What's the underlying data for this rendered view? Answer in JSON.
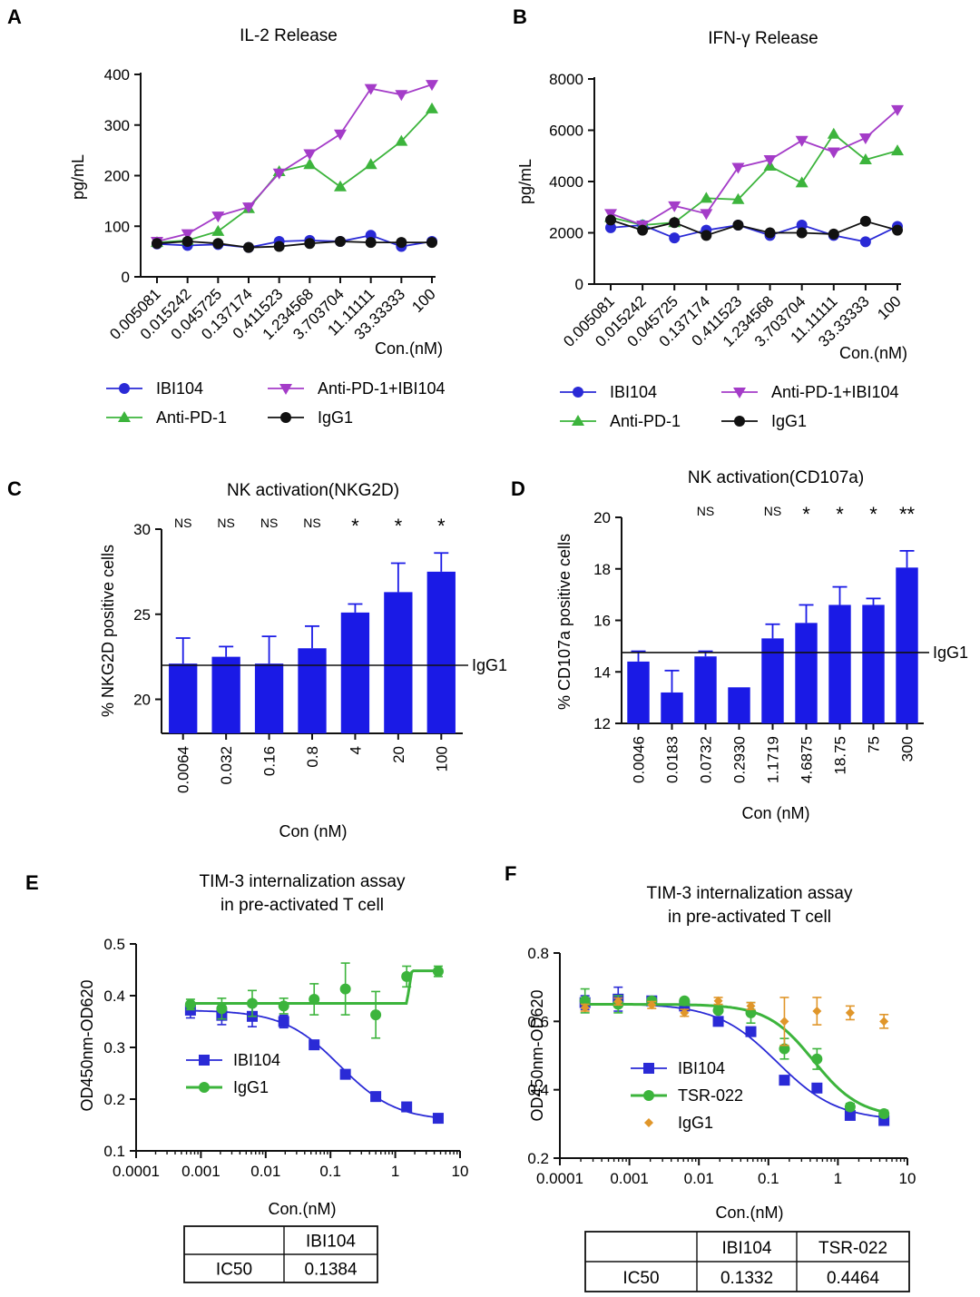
{
  "panels": [
    {
      "letter": "A",
      "title": [
        "IL-2 Release"
      ],
      "type": "line",
      "xlabel": "Con.(nM)",
      "ylabel": "pg/mL",
      "categories": [
        "0.005081",
        "0.015242",
        "0.045725",
        "0.137174",
        "0.411523",
        "1.234568",
        "3.703704",
        "11.11111",
        "33.33333",
        "100"
      ],
      "yticks": [
        0,
        100,
        200,
        300,
        400
      ],
      "ylim": [
        0,
        400
      ],
      "series": [
        {
          "name": "IBI104",
          "color": "#2a2ad6",
          "marker": "circle",
          "values": [
            65,
            62,
            64,
            58,
            70,
            72,
            70,
            82,
            60,
            70
          ]
        },
        {
          "name": "Anti-PD-1",
          "color": "#3cb43c",
          "marker": "triangle-up",
          "values": [
            68,
            72,
            90,
            135,
            208,
            222,
            178,
            222,
            268,
            332
          ]
        },
        {
          "name": "Anti-PD-1+IBI104",
          "color": "#a43cc8",
          "marker": "triangle-down",
          "values": [
            70,
            85,
            120,
            138,
            205,
            243,
            282,
            372,
            360,
            380
          ]
        },
        {
          "name": "IgG1",
          "color": "#111111",
          "marker": "circle",
          "values": [
            66,
            70,
            66,
            58,
            60,
            66,
            70,
            68,
            68,
            68
          ]
        }
      ]
    },
    {
      "letter": "B",
      "title": [
        "IFN-γ Release"
      ],
      "type": "line",
      "xlabel": "Con.(nM)",
      "ylabel": "pg/mL",
      "categories": [
        "0.005081",
        "0.015242",
        "0.045725",
        "0.137174",
        "0.411523",
        "1.234568",
        "3.703704",
        "11.11111",
        "33.33333",
        "100"
      ],
      "yticks": [
        0,
        2000,
        4000,
        6000,
        8000
      ],
      "ylim": [
        0,
        8000
      ],
      "series": [
        {
          "name": "IBI104",
          "color": "#2a2ad6",
          "marker": "circle",
          "values": [
            2200,
            2300,
            1800,
            2100,
            2300,
            1900,
            2300,
            1900,
            1650,
            2250
          ]
        },
        {
          "name": "Anti-PD-1",
          "color": "#3cb43c",
          "marker": "triangle-up",
          "values": [
            2600,
            2300,
            2400,
            3350,
            3300,
            4600,
            3950,
            5850,
            4850,
            5200
          ]
        },
        {
          "name": "Anti-PD-1+IBI104",
          "color": "#a43cc8",
          "marker": "triangle-down",
          "values": [
            2750,
            2300,
            3050,
            2750,
            4550,
            4850,
            5600,
            5150,
            5700,
            6800
          ]
        },
        {
          "name": "IgG1",
          "color": "#111111",
          "marker": "circle",
          "values": [
            2500,
            2100,
            2400,
            1900,
            2300,
            2000,
            2000,
            1950,
            2450,
            2100
          ]
        }
      ]
    },
    {
      "letter": "C",
      "title": [
        "NK activation(NKG2D)"
      ],
      "type": "bar",
      "xlabel": "Con (nM)",
      "ylabel": "% NKG2D positive cells",
      "categories": [
        "0.0064",
        "0.032",
        "0.16",
        "0.8",
        "4",
        "20",
        "100"
      ],
      "values": [
        22.1,
        22.5,
        22.1,
        23.0,
        25.1,
        26.3,
        27.5
      ],
      "errors": [
        1.5,
        0.6,
        1.6,
        1.3,
        0.5,
        1.7,
        1.1
      ],
      "significance": [
        "NS",
        "NS",
        "NS",
        "NS",
        "*",
        "*",
        "*"
      ],
      "yticks": [
        20,
        25,
        30
      ],
      "ylim": [
        18,
        30
      ],
      "reference": {
        "label": "IgG1",
        "value": 22.0
      },
      "color": "#1a1ae6"
    },
    {
      "letter": "D",
      "title": [
        "NK activation(CD107a)"
      ],
      "type": "bar",
      "xlabel": "Con (nM)",
      "ylabel": "% CD107a positive cells",
      "categories": [
        "0.0046",
        "0.0183",
        "0.0732",
        "0.2930",
        "1.1719",
        "4.6875",
        "18.75",
        "75",
        "300"
      ],
      "values": [
        14.4,
        13.2,
        14.6,
        13.4,
        15.3,
        15.9,
        16.6,
        16.6,
        18.05
      ],
      "errors": [
        0.4,
        0.85,
        0.2,
        0.0,
        0.55,
        0.7,
        0.7,
        0.25,
        0.65
      ],
      "significance": [
        "",
        "",
        "NS",
        "",
        "NS",
        "*",
        "*",
        "*",
        "**"
      ],
      "yticks": [
        12,
        14,
        16,
        18,
        20
      ],
      "ylim": [
        12,
        20
      ],
      "reference": {
        "label": "IgG1",
        "value": 14.75
      },
      "color": "#1a1ae6"
    },
    {
      "letter": "E",
      "title": [
        "TIM-3 internalization assay",
        "in pre-activated T cell"
      ],
      "type": "scatter",
      "xscale": "log",
      "xlabel": "Con.(nM)",
      "ylabel": "OD450nm-OD620",
      "xticks": [
        "0.0001",
        "0.001",
        "0.01",
        "0.1",
        "1",
        "10"
      ],
      "xlim": [
        0.0001,
        10
      ],
      "yticks": [
        0.1,
        0.2,
        0.3,
        0.4,
        0.5
      ],
      "ylim": [
        0.1,
        0.5
      ],
      "series": [
        {
          "name": "IBI104",
          "color": "#2a2ad6",
          "marker": "square",
          "x": [
            0.00069,
            0.0021,
            0.0062,
            0.019,
            0.056,
            0.17,
            0.5,
            1.5,
            4.6
          ],
          "y": [
            0.372,
            0.362,
            0.36,
            0.35,
            0.305,
            0.248,
            0.205,
            0.185,
            0.163
          ],
          "err": [
            0.015,
            0.018,
            0.02,
            0.012,
            0.005,
            0.008,
            0.004,
            0.004,
            0.004
          ],
          "fit": {
            "model": "sigmoid",
            "top": 0.372,
            "bottom": 0.158,
            "ic50": 0.1384,
            "hill": 1.0
          }
        },
        {
          "name": "IgG1",
          "color": "#3cb43c",
          "marker": "circle",
          "x": [
            0.00069,
            0.0021,
            0.0062,
            0.019,
            0.056,
            0.17,
            0.5,
            1.5,
            4.6
          ],
          "y": [
            0.383,
            0.375,
            0.385,
            0.38,
            0.393,
            0.413,
            0.363,
            0.437,
            0.447
          ],
          "err": [
            0.01,
            0.02,
            0.025,
            0.015,
            0.03,
            0.05,
            0.045,
            0.02,
            0.01
          ],
          "fit": {
            "model": "step",
            "low": 0.385,
            "high": 0.448,
            "x_step": 1.5
          }
        }
      ],
      "table": {
        "headers": [
          "",
          "IBI104"
        ],
        "rows": [
          [
            "IC50",
            "0.1384"
          ]
        ]
      }
    },
    {
      "letter": "F",
      "title": [
        "TIM-3 internalization assay",
        "in pre-activated T cell"
      ],
      "type": "scatter",
      "xscale": "log",
      "xlabel": "Con.(nM)",
      "ylabel": "OD450nm-OD620",
      "xticks": [
        "0.0001",
        "0.001",
        "0.01",
        "0.1",
        "1",
        "10"
      ],
      "xlim": [
        0.0001,
        10
      ],
      "yticks": [
        0.2,
        0.4,
        0.6,
        0.8
      ],
      "ylim": [
        0.2,
        0.8
      ],
      "series": [
        {
          "name": "IBI104",
          "color": "#2a2ad6",
          "marker": "square",
          "x": [
            0.00023,
            0.00069,
            0.0021,
            0.0062,
            0.019,
            0.056,
            0.17,
            0.5,
            1.5,
            4.6
          ],
          "y": [
            0.655,
            0.665,
            0.66,
            0.645,
            0.6,
            0.57,
            0.428,
            0.405,
            0.325,
            0.31
          ],
          "err": [
            0.02,
            0.035,
            0.005,
            0.005,
            0.005,
            0.005,
            0.005,
            0.005,
            0.005,
            0.01
          ],
          "fit": {
            "model": "sigmoid",
            "top": 0.652,
            "bottom": 0.31,
            "ic50": 0.1332,
            "hill": 1.0
          }
        },
        {
          "name": "TSR-022",
          "color": "#3cb43c",
          "marker": "circle",
          "x": [
            0.00023,
            0.00069,
            0.0021,
            0.0062,
            0.019,
            0.056,
            0.17,
            0.5,
            1.5,
            4.6
          ],
          "y": [
            0.66,
            0.65,
            0.66,
            0.66,
            0.632,
            0.625,
            0.52,
            0.49,
            0.35,
            0.33
          ],
          "err": [
            0.035,
            0.025,
            0.01,
            0.005,
            0.005,
            0.03,
            0.03,
            0.03,
            0.01,
            0.01
          ],
          "fit": {
            "model": "sigmoid",
            "top": 0.65,
            "bottom": 0.32,
            "ic50": 0.4464,
            "hill": 1.3
          }
        },
        {
          "name": "IgG1",
          "color": "#e0962a",
          "marker": "diamond",
          "x": [
            0.00023,
            0.00069,
            0.0021,
            0.0062,
            0.019,
            0.056,
            0.17,
            0.5,
            1.5,
            4.6
          ],
          "y": [
            0.64,
            0.658,
            0.648,
            0.625,
            0.66,
            0.645,
            0.6,
            0.63,
            0.625,
            0.6
          ],
          "err": [
            0.01,
            0.01,
            0.01,
            0.01,
            0.01,
            0.01,
            0.07,
            0.04,
            0.02,
            0.02
          ]
        }
      ],
      "table": {
        "headers": [
          "",
          "IBI104",
          "TSR-022"
        ],
        "rows": [
          [
            "IC50",
            "0.1332",
            "0.4464"
          ]
        ]
      }
    }
  ]
}
